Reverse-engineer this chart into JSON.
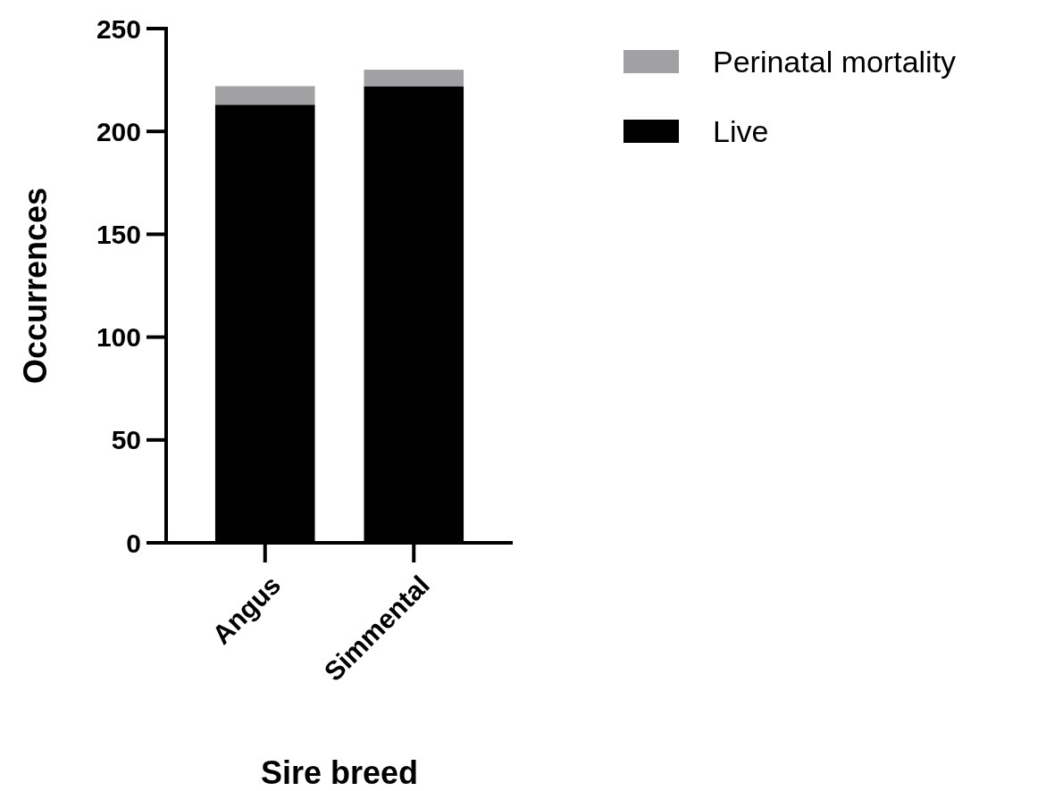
{
  "chart_data": {
    "type": "bar",
    "stacked": true,
    "xlabel": "Sire breed",
    "ylabel": "Occurrences",
    "categories": [
      "Angus",
      "Simmental"
    ],
    "series": [
      {
        "name": "Live",
        "color": "#000000",
        "values": [
          213,
          222
        ]
      },
      {
        "name": "Perinatal mortality",
        "color": "#a1a1a4",
        "values": [
          9,
          8
        ]
      }
    ],
    "ylim": [
      0,
      250
    ],
    "yticks": [
      0,
      50,
      100,
      150,
      200,
      250
    ],
    "grid": false,
    "legend": "top right"
  }
}
